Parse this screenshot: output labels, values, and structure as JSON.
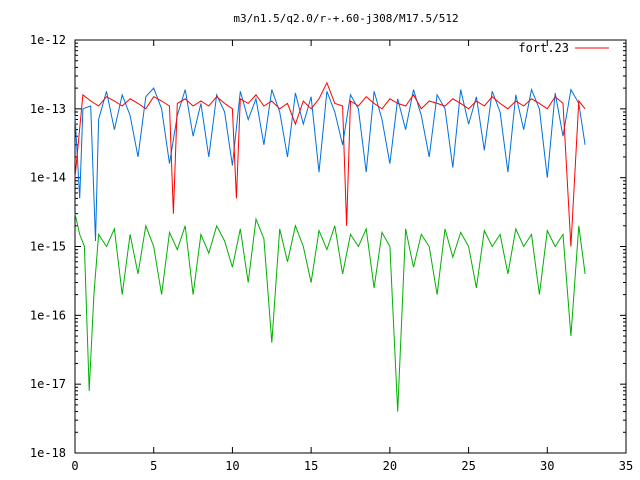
{
  "chart_data": {
    "type": "line",
    "title": "m3/n1.5/q2.0/r-+.60-j308/M17.5/512",
    "xlabel": "",
    "ylabel": "",
    "xlim": [
      0,
      35
    ],
    "ylim": [
      1e-18,
      1e-12
    ],
    "yscale": "log",
    "grid": false,
    "legend_position": "top-right",
    "x_ticks": [
      0,
      5,
      10,
      15,
      20,
      25,
      30,
      35
    ],
    "x_tick_labels": [
      "0",
      "5",
      "10",
      "15",
      "20",
      "25",
      "30",
      "35"
    ],
    "y_ticks": [
      1e-18,
      1e-17,
      1e-16,
      1e-15,
      1e-14,
      1e-13,
      1e-12
    ],
    "y_tick_labels": [
      "1e-18",
      "1e-17",
      "1e-16",
      "1e-15",
      "1e-14",
      "1e-13",
      "1e-12"
    ],
    "series": [
      {
        "name": "fort.23",
        "color": "#ff0000",
        "x": [
          0,
          0.5,
          1,
          1.5,
          2,
          2.5,
          3,
          3.5,
          4,
          4.5,
          5,
          5.5,
          6,
          6.25,
          6.5,
          7,
          7.5,
          8,
          8.5,
          9,
          9.5,
          10,
          10.25,
          10.5,
          11,
          11.5,
          12,
          12.5,
          13,
          13.5,
          14,
          14.5,
          15,
          15.5,
          16,
          16.5,
          17,
          17.25,
          17.5,
          18,
          18.5,
          19,
          19.5,
          20,
          20.5,
          21,
          21.5,
          22,
          22.5,
          23,
          23.5,
          24,
          24.5,
          25,
          25.5,
          26,
          26.5,
          27,
          27.5,
          28,
          28.5,
          29,
          29.5,
          30,
          30.5,
          31,
          31.5,
          32,
          32.4
        ],
        "y": [
          1e-14,
          1.6e-13,
          1.3e-13,
          1.1e-13,
          1.5e-13,
          1.3e-13,
          1.1e-13,
          1.4e-13,
          1.2e-13,
          1e-13,
          1.5e-13,
          1.3e-13,
          1.1e-13,
          3e-15,
          1.2e-13,
          1.4e-13,
          1.1e-13,
          1.3e-13,
          1.1e-13,
          1.5e-13,
          1.2e-13,
          1e-13,
          5e-15,
          1.4e-13,
          1.2e-13,
          1.6e-13,
          1.1e-13,
          1.3e-13,
          1e-13,
          1.2e-13,
          6e-14,
          1.3e-13,
          1e-13,
          1.4e-13,
          2.4e-13,
          1.2e-13,
          1.1e-13,
          2e-15,
          1.3e-13,
          1.1e-13,
          1.5e-13,
          1.2e-13,
          1e-13,
          1.4e-13,
          1.2e-13,
          1.1e-13,
          1.6e-13,
          1e-13,
          1.3e-13,
          1.2e-13,
          1.1e-13,
          1.4e-13,
          1.2e-13,
          1e-13,
          1.3e-13,
          1.1e-13,
          1.5e-13,
          1.2e-13,
          1e-13,
          1.3e-13,
          1.1e-13,
          1.4e-13,
          1.2e-13,
          1e-13,
          1.5e-13,
          1.2e-13,
          1e-15,
          1.3e-13,
          1e-13
        ]
      },
      {
        "name": "",
        "color": "#0070dd",
        "x": [
          0,
          0.3,
          0.5,
          1,
          1.3,
          1.5,
          2,
          2.5,
          3,
          3.5,
          4,
          4.5,
          5,
          5.5,
          6,
          6.5,
          7,
          7.5,
          8,
          8.5,
          9,
          9.5,
          10,
          10.5,
          11,
          11.5,
          12,
          12.5,
          13,
          13.5,
          14,
          14.5,
          15,
          15.5,
          16,
          16.5,
          17,
          17.5,
          18,
          18.5,
          19,
          19.5,
          20,
          20.5,
          21,
          21.5,
          22,
          22.5,
          23,
          23.5,
          24,
          24.5,
          25,
          25.5,
          26,
          26.5,
          27,
          27.5,
          28,
          28.5,
          29,
          29.5,
          30,
          30.5,
          31,
          31.5,
          32,
          32.4
        ],
        "y": [
          8e-14,
          5e-15,
          1e-13,
          1.1e-13,
          1.2e-15,
          7e-14,
          1.8e-13,
          5e-14,
          1.6e-13,
          8e-14,
          2e-14,
          1.5e-13,
          2e-13,
          1e-13,
          1.6e-14,
          8e-14,
          1.9e-13,
          4e-14,
          1.2e-13,
          2e-14,
          1.6e-13,
          9e-14,
          1.5e-14,
          1.8e-13,
          7e-14,
          1.4e-13,
          3e-14,
          1.9e-13,
          9e-14,
          2e-14,
          1.7e-13,
          6e-14,
          1.5e-13,
          1.2e-14,
          1.8e-13,
          9e-14,
          3e-14,
          1.6e-13,
          1e-13,
          1.2e-14,
          1.8e-13,
          7e-14,
          1.6e-14,
          1.4e-13,
          5e-14,
          1.9e-13,
          8e-14,
          2e-14,
          1.6e-13,
          1e-13,
          1.4e-14,
          1.9e-13,
          6e-14,
          1.5e-13,
          2.5e-14,
          1.8e-13,
          9e-14,
          1.2e-14,
          1.6e-13,
          5e-14,
          1.9e-13,
          1e-13,
          1e-14,
          1.7e-13,
          4e-14,
          1.9e-13,
          1.2e-13,
          3e-14
        ]
      },
      {
        "name": "",
        "color": "#00b000",
        "x": [
          0,
          0.3,
          0.6,
          0.9,
          1.2,
          1.5,
          2,
          2.5,
          3,
          3.5,
          4,
          4.5,
          5,
          5.5,
          6,
          6.5,
          7,
          7.5,
          8,
          8.5,
          9,
          9.5,
          10,
          10.5,
          11,
          11.5,
          12,
          12.5,
          13,
          13.5,
          14,
          14.5,
          15,
          15.5,
          16,
          16.5,
          17,
          17.5,
          18,
          18.5,
          19,
          19.5,
          20,
          20.5,
          21,
          21.5,
          22,
          22.5,
          23,
          23.5,
          24,
          24.5,
          25,
          25.5,
          26,
          26.5,
          27,
          27.5,
          28,
          28.5,
          29,
          29.5,
          30,
          30.5,
          31,
          31.5,
          32,
          32.4
        ],
        "y": [
          3e-15,
          1.5e-15,
          1e-15,
          8e-18,
          2e-16,
          1.5e-15,
          1e-15,
          1.8e-15,
          2e-16,
          1.5e-15,
          4e-16,
          2e-15,
          1e-15,
          2e-16,
          1.6e-15,
          9e-16,
          2e-15,
          2e-16,
          1.5e-15,
          8e-16,
          2e-15,
          1.2e-15,
          5e-16,
          1.8e-15,
          3e-16,
          2.5e-15,
          1.3e-15,
          4e-17,
          1.8e-15,
          6e-16,
          2e-15,
          1e-15,
          3e-16,
          1.7e-15,
          9e-16,
          2e-15,
          4e-16,
          1.5e-15,
          1e-15,
          1.8e-15,
          2.5e-16,
          1.6e-15,
          1e-15,
          4e-18,
          1.8e-15,
          5e-16,
          1.5e-15,
          1e-15,
          2e-16,
          1.8e-15,
          7e-16,
          1.6e-15,
          1e-15,
          2.5e-16,
          1.7e-15,
          1e-15,
          1.5e-15,
          4e-16,
          1.8e-15,
          1e-15,
          1.5e-15,
          2e-16,
          1.7e-15,
          1e-15,
          1.5e-15,
          5e-17,
          2e-15,
          4e-16
        ]
      }
    ]
  }
}
